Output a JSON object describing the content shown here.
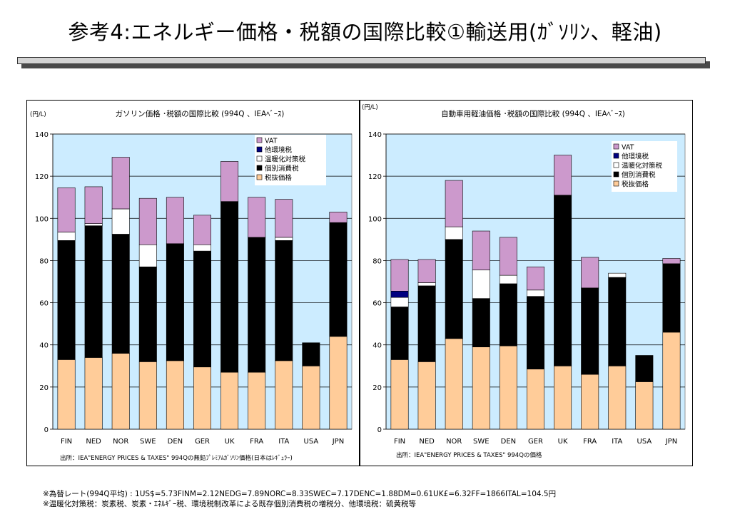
{
  "slide": {
    "title": "参考4:エネルギー価格・税額の国際比較①輸送用(ｶﾞｿﾘﾝ、軽油)",
    "notes": [
      "※為替レート(994Q平均) : 1US$=5.73FINM=2.12NEDG=7.89NORC=8.33SWEC=7.17DENC=1.88DM=0.61UK£=6.32FF=1866ITAL=104.5円",
      "※温暖化対策税：炭素税、炭素・ｴﾈﾙｷﾞｰ税、環境税制改革による既存個別消費税の増税分、他環境税：硫黄税等"
    ]
  },
  "colors": {
    "vat": "#cc99cc",
    "other_env_tax": "#000080",
    "climate_tax": "#ffffff",
    "excise_tax": "#000000",
    "pre_tax_price": "#ffcc99",
    "plot_bg": "#ccecff"
  },
  "chart_data": [
    {
      "type": "bar",
      "stacked": true,
      "title": "ガソリン価格 ･税額の国際比較 (994Q 、IEAﾍﾞｰｽ)",
      "unit_label": "(円/L)",
      "source": "出所：IEA\"ENERGY PRICES & TAXES\" 994Qの無鉛ﾌﾟﾚﾐｱﾑｶﾞｿﾘﾝ価格(日本はﾚｷﾞｭﾗｰ)",
      "categories": [
        "FIN",
        "NED",
        "NOR",
        "SWE",
        "DEN",
        "GER",
        "UK",
        "FRA",
        "ITA",
        "USA",
        "JPN"
      ],
      "ylim": [
        0,
        140
      ],
      "yticks": [
        "0",
        "20",
        "40",
        "60",
        "80",
        "100",
        "120",
        "140"
      ],
      "grid": true,
      "legend_position": "top-right",
      "series": [
        {
          "name": "税抜価格",
          "key": "pre_tax_price",
          "values": [
            33,
            34,
            36,
            32,
            32.5,
            29.5,
            27,
            27,
            32.5,
            30,
            44
          ]
        },
        {
          "name": "個別消費税",
          "key": "excise_tax",
          "values": [
            56.5,
            62.5,
            56.5,
            45,
            55.5,
            55,
            81,
            64,
            57,
            11,
            54
          ]
        },
        {
          "name": "温暖化対策税",
          "key": "climate_tax",
          "values": [
            4,
            1,
            12,
            10.5,
            0,
            3,
            0,
            0,
            1.5,
            0,
            0
          ]
        },
        {
          "name": "他環境税",
          "key": "other_env_tax",
          "values": [
            0,
            0,
            0,
            0,
            0,
            0,
            0,
            0,
            0,
            0,
            0
          ]
        },
        {
          "name": "VAT",
          "key": "vat",
          "values": [
            21,
            17.5,
            24.5,
            22,
            22,
            14,
            19,
            19,
            18,
            0,
            5
          ]
        }
      ]
    },
    {
      "type": "bar",
      "stacked": true,
      "title": "自動車用軽油価格 ･税額の国際比較 (994Q 、IEAﾍﾞｰｽ)",
      "unit_label": "(円/L)",
      "source": "出所：IEA\"ENERGY PRICES & TAXES\" 994Qの価格",
      "categories": [
        "FIN",
        "NED",
        "NOR",
        "SWE",
        "DEN",
        "GER",
        "UK",
        "FRA",
        "ITA",
        "USA",
        "JPN"
      ],
      "ylim": [
        0,
        140
      ],
      "yticks": [
        "0",
        "20",
        "40",
        "60",
        "80",
        "100",
        "120",
        "140"
      ],
      "grid": true,
      "legend_position": "top-right",
      "series": [
        {
          "name": "税抜価格",
          "key": "pre_tax_price",
          "values": [
            33,
            32,
            43,
            39,
            39.5,
            28.5,
            30,
            26,
            30,
            22.5,
            46
          ]
        },
        {
          "name": "個別消費税",
          "key": "excise_tax",
          "values": [
            25,
            36,
            47,
            23,
            29.5,
            34.5,
            81,
            41,
            42,
            12.5,
            32.5
          ]
        },
        {
          "name": "温暖化対策税",
          "key": "climate_tax",
          "values": [
            4.5,
            1.5,
            6,
            13.5,
            4,
            3,
            0,
            0,
            2,
            0,
            0
          ]
        },
        {
          "name": "他環境税",
          "key": "other_env_tax",
          "values": [
            3,
            0,
            0,
            0,
            0,
            0,
            0,
            0,
            0,
            0,
            0
          ]
        },
        {
          "name": "VAT",
          "key": "vat",
          "values": [
            15,
            11,
            22,
            18.5,
            18,
            11,
            19,
            14.5,
            0,
            0,
            2.5
          ]
        }
      ]
    }
  ]
}
